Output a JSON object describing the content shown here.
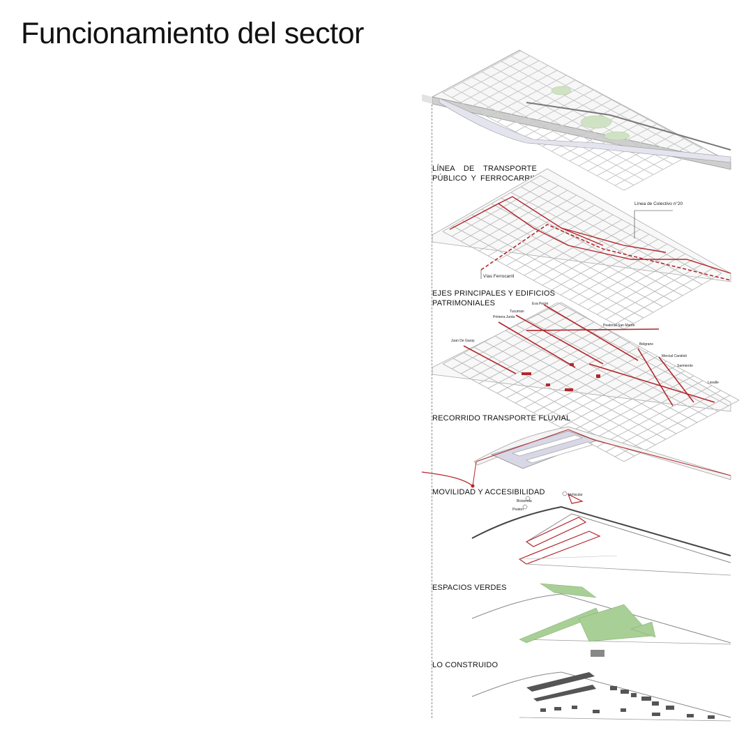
{
  "page": {
    "title": "Funcionamiento del sector"
  },
  "layers": {
    "base": {},
    "transporte": {
      "label_line1": "LÍNEA DE TRANSPORTE",
      "label_line2": "PÚBLICO Y FERROCARRIL",
      "annotations": {
        "colectivo": "Línea de Colectivo n°20",
        "ferrocarril": "Vías Ferrocarril"
      }
    },
    "ejes": {
      "label_line1": "EJES PRINCIPALES Y EDIFICIOS",
      "label_line2": "PATRIMONIALES",
      "streets": {
        "eva_peron": "Eva Perón",
        "tucuman": "Tucuman",
        "primera_junta": "Primera Junta",
        "juan_de_garay": "Juan De Garay",
        "peatonal_san_martin": "Peatonal San Martín",
        "belgrano": "Belgrano",
        "mercial_candioti": "Mercial Candioti",
        "sarmiento": "Sarmiento",
        "lavalle": "Lavalle"
      }
    },
    "fluvial": {
      "label": "RECORRIDO TRANSPORTE FLUVIAL"
    },
    "movilidad": {
      "label": "MOVILIDAD Y ACCESIBILIDAD",
      "legend": {
        "vehicular": "Vehicular",
        "bicisenda": "Bicisenda",
        "peaton": "Peaton"
      }
    },
    "verdes": {
      "label": "ESPACIOS VERDES"
    },
    "construido": {
      "label": "LO CONSTRUIDO"
    }
  },
  "colors": {
    "accent_red": "#b3262b",
    "green": "#8fc47a",
    "grid": "#bdbdbd",
    "water": "#dcdcec"
  }
}
